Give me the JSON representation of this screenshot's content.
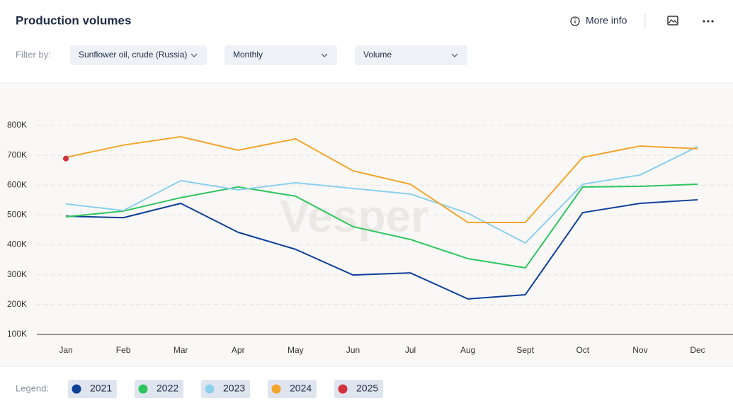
{
  "header": {
    "title": "Production volumes",
    "more_info": "More info"
  },
  "filters": {
    "label": "Filter by:",
    "options": [
      "Sunflower oil, crude (Russia)",
      "Monthly",
      "Volume"
    ]
  },
  "chart_data": {
    "type": "line",
    "watermark": "Vesper",
    "categories": [
      "Jan",
      "Feb",
      "Mar",
      "Apr",
      "May",
      "Jun",
      "Jul",
      "Aug",
      "Sept",
      "Oct",
      "Nov",
      "Dec"
    ],
    "series": [
      {
        "name": "2021",
        "color": "#0d3f99",
        "values": [
          496000,
          491000,
          539000,
          442000,
          385000,
          299000,
          306000,
          219000,
          233000,
          508000,
          539000,
          551000
        ]
      },
      {
        "name": "2022",
        "color": "#2ec55e",
        "values": [
          494000,
          513000,
          558000,
          594000,
          563000,
          461000,
          418000,
          354000,
          323000,
          594000,
          596000,
          603000
        ]
      },
      {
        "name": "2023",
        "color": "#8ccfee",
        "values": [
          537000,
          515000,
          615000,
          584000,
          608000,
          589000,
          570000,
          506000,
          406000,
          603000,
          634000,
          729000
        ]
      },
      {
        "name": "2024",
        "color": "#f3a52b",
        "values": [
          693000,
          734000,
          762000,
          717000,
          755000,
          648000,
          603000,
          475000,
          475000,
          693000,
          731000,
          722000
        ]
      },
      {
        "name": "2025",
        "color": "#d2313d",
        "values": [
          689000,
          null,
          null,
          null,
          null,
          null,
          null,
          null,
          null,
          null,
          null,
          null
        ]
      }
    ],
    "ylim": [
      100000,
      800000
    ],
    "yticks": [
      {
        "value": 100000,
        "label": "100K"
      },
      {
        "value": 200000,
        "label": "200K"
      },
      {
        "value": 300000,
        "label": "300K"
      },
      {
        "value": 400000,
        "label": "400K"
      },
      {
        "value": 500000,
        "label": "500K"
      },
      {
        "value": 600000,
        "label": "600K"
      },
      {
        "value": 700000,
        "label": "700K"
      },
      {
        "value": 800000,
        "label": "800K"
      }
    ],
    "grid": true,
    "legend_label": "Legend:"
  }
}
